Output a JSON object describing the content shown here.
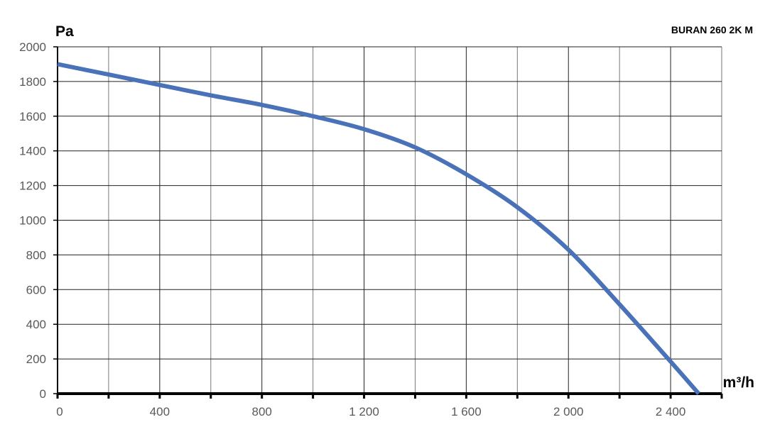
{
  "chart_data": {
    "type": "line",
    "title": "BURAN 260 2K M",
    "xlabel": "m³/h",
    "ylabel": "Pa",
    "xlim": [
      0,
      2600
    ],
    "ylim": [
      0,
      2000
    ],
    "xticks": [
      0,
      400,
      800,
      1200,
      1600,
      2000,
      2400
    ],
    "xtick_labels": [
      "0",
      "400",
      "800",
      "1 200",
      "1 600",
      "2 000",
      "2 400"
    ],
    "yticks": [
      0,
      200,
      400,
      600,
      800,
      1000,
      1200,
      1400,
      1600,
      1800,
      2000
    ],
    "ytick_labels": [
      "0",
      "200",
      "400",
      "600",
      "800",
      "1000",
      "1200",
      "1400",
      "1600",
      "1800",
      "2000"
    ],
    "grid": true,
    "series": [
      {
        "color": "#4a72b8",
        "x": [
          0,
          200,
          400,
          600,
          800,
          1000,
          1200,
          1400,
          1600,
          1800,
          2000,
          2200,
          2400,
          2510
        ],
        "y": [
          1900,
          1840,
          1780,
          1720,
          1665,
          1600,
          1525,
          1420,
          1265,
          1075,
          830,
          515,
          185,
          0
        ]
      }
    ]
  }
}
